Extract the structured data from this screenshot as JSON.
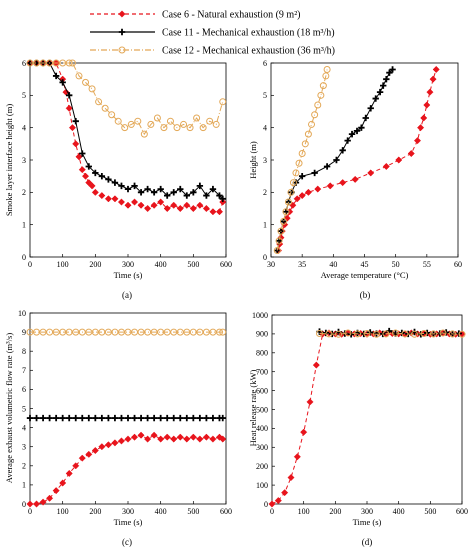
{
  "legend": {
    "items": [
      {
        "label": "Case 6 - Natural exhaustion (9 m²)",
        "color": "#e8141c",
        "marker": "diamond",
        "dash": "4,3"
      },
      {
        "label": "Case 11 - Mechanical exhaustion (18 m³/h)",
        "color": "#000000",
        "marker": "plus",
        "dash": ""
      },
      {
        "label": "Case 12 - Mechanical exhaustion (36 m³/h)",
        "color": "#e3a857",
        "marker": "circle",
        "dash": "6,2,1,2"
      }
    ]
  },
  "chart_data": [
    {
      "panel": "(a)",
      "type": "line",
      "xlabel": "Time (s)",
      "ylabel": "Smoke layer interface height (m)",
      "xlim": [
        0,
        600
      ],
      "ylim": [
        0,
        6
      ],
      "xticks": [
        0,
        100,
        200,
        300,
        400,
        500,
        600
      ],
      "yticks": [
        0,
        1,
        2,
        3,
        4,
        5,
        6
      ],
      "series": [
        {
          "name": "Case 6 - Natural exhaustion (9 m²)",
          "color": "#e8141c",
          "marker": "diamond",
          "x": [
            0,
            20,
            40,
            60,
            80,
            100,
            110,
            120,
            130,
            140,
            150,
            160,
            170,
            180,
            190,
            200,
            220,
            240,
            260,
            280,
            300,
            320,
            340,
            360,
            380,
            400,
            420,
            440,
            460,
            480,
            500,
            520,
            540,
            560,
            580,
            590
          ],
          "y": [
            6,
            6,
            6,
            6,
            6,
            5.5,
            5.1,
            4.6,
            4.0,
            3.5,
            3.1,
            2.7,
            2.5,
            2.3,
            2.2,
            2.0,
            1.9,
            1.8,
            1.8,
            1.7,
            1.6,
            1.7,
            1.6,
            1.5,
            1.6,
            1.7,
            1.5,
            1.6,
            1.5,
            1.6,
            1.5,
            1.6,
            1.5,
            1.4,
            1.4,
            1.7
          ]
        },
        {
          "name": "Case 11 - Mechanical exhaustion (18 m³/h)",
          "color": "#000000",
          "marker": "plus",
          "x": [
            0,
            20,
            40,
            60,
            80,
            100,
            120,
            140,
            160,
            180,
            200,
            220,
            240,
            260,
            280,
            300,
            320,
            340,
            360,
            380,
            400,
            420,
            440,
            460,
            480,
            500,
            520,
            540,
            560,
            580,
            590
          ],
          "y": [
            6,
            6,
            6,
            6,
            5.6,
            5.4,
            5.0,
            4.2,
            3.2,
            2.8,
            2.6,
            2.5,
            2.4,
            2.3,
            2.2,
            2.1,
            2.2,
            2.0,
            2.1,
            2.0,
            2.1,
            1.9,
            2.0,
            2.1,
            1.9,
            2.0,
            2.2,
            1.9,
            2.1,
            1.9,
            1.8
          ]
        },
        {
          "name": "Case 12 - Mechanical exhaustion (36 m³/h)",
          "color": "#e3a857",
          "marker": "circle",
          "x": [
            0,
            20,
            40,
            60,
            80,
            100,
            120,
            130,
            150,
            170,
            190,
            210,
            230,
            250,
            270,
            290,
            310,
            330,
            350,
            370,
            390,
            410,
            430,
            450,
            470,
            490,
            510,
            530,
            550,
            570,
            590
          ],
          "y": [
            6,
            6,
            6,
            6,
            6,
            6,
            6,
            6,
            5.6,
            5.4,
            5.2,
            4.8,
            4.6,
            4.4,
            4.2,
            4.0,
            4.1,
            4.2,
            3.8,
            4.1,
            4.3,
            4.0,
            4.2,
            4.0,
            4.1,
            4.0,
            4.3,
            4.0,
            4.2,
            4.1,
            4.8
          ]
        }
      ]
    },
    {
      "panel": "(b)",
      "type": "line",
      "xlabel": "Average temperature (°C)",
      "ylabel": "Height (m)",
      "xlim": [
        30,
        60
      ],
      "ylim": [
        0,
        6
      ],
      "xticks": [
        30,
        35,
        40,
        45,
        50,
        55,
        60
      ],
      "yticks": [
        0,
        1,
        2,
        3,
        4,
        5,
        6
      ],
      "series": [
        {
          "name": "Case 6 - Natural exhaustion (9 m²)",
          "color": "#e8141c",
          "marker": "diamond",
          "x": [
            31.2,
            31.4,
            31.6,
            31.8,
            32.2,
            32.6,
            33.0,
            33.5,
            34.2,
            35.0,
            36.0,
            37.5,
            39.5,
            41.5,
            43.5,
            46.0,
            48.5,
            50.5,
            52.5,
            53.5,
            54.0,
            54.5,
            55.0,
            55.5,
            56.0,
            56.5
          ],
          "y": [
            0.2,
            0.4,
            0.6,
            0.8,
            1.0,
            1.2,
            1.4,
            1.6,
            1.8,
            1.9,
            2.0,
            2.1,
            2.2,
            2.3,
            2.4,
            2.6,
            2.8,
            3.0,
            3.2,
            3.6,
            4.0,
            4.3,
            4.7,
            5.1,
            5.5,
            5.8
          ]
        },
        {
          "name": "Case 11 - Mechanical exhaustion (18 m³/h)",
          "color": "#000000",
          "marker": "plus",
          "x": [
            31.0,
            31.3,
            31.6,
            32.0,
            32.4,
            32.8,
            33.3,
            34.0,
            35.0,
            37.0,
            39.0,
            40.5,
            41.5,
            42.3,
            43.0,
            43.8,
            44.5,
            45.2,
            46.0,
            46.8,
            47.5,
            48.0,
            48.5,
            49.0,
            49.5
          ],
          "y": [
            0.2,
            0.5,
            0.8,
            1.1,
            1.4,
            1.7,
            2.0,
            2.3,
            2.5,
            2.6,
            2.8,
            3.0,
            3.3,
            3.6,
            3.8,
            3.9,
            4.0,
            4.3,
            4.6,
            4.9,
            5.1,
            5.3,
            5.5,
            5.7,
            5.8
          ]
        },
        {
          "name": "Case 12 - Mechanical exhaustion (36 m³/h)",
          "color": "#e3a857",
          "marker": "circle",
          "x": [
            31.0,
            31.3,
            31.6,
            32.0,
            32.4,
            32.8,
            33.2,
            33.6,
            34.0,
            34.5,
            35.0,
            35.5,
            36.0,
            36.5,
            37.0,
            37.5,
            38.0,
            38.4,
            38.8,
            39.0
          ],
          "y": [
            0.2,
            0.5,
            0.8,
            1.1,
            1.4,
            1.7,
            2.0,
            2.3,
            2.6,
            2.9,
            3.2,
            3.5,
            3.8,
            4.1,
            4.4,
            4.7,
            5.0,
            5.3,
            5.6,
            5.8
          ]
        }
      ]
    },
    {
      "panel": "(c)",
      "type": "line",
      "xlabel": "Time (s)",
      "ylabel": "Average exhaust volumetric flow rate (m³/s)",
      "xlim": [
        0,
        600
      ],
      "ylim": [
        0,
        10
      ],
      "xticks": [
        0,
        100,
        200,
        300,
        400,
        500,
        600
      ],
      "yticks": [
        0,
        1,
        2,
        3,
        4,
        5,
        6,
        7,
        8,
        9,
        10
      ],
      "series": [
        {
          "name": "Case 6 - Natural exhaustion (9 m²)",
          "color": "#e8141c",
          "marker": "diamond",
          "x": [
            0,
            20,
            40,
            60,
            80,
            100,
            120,
            140,
            160,
            180,
            200,
            220,
            240,
            260,
            280,
            300,
            320,
            340,
            360,
            380,
            400,
            420,
            440,
            460,
            480,
            500,
            520,
            540,
            560,
            580,
            590
          ],
          "y": [
            0,
            0,
            0.1,
            0.3,
            0.7,
            1.1,
            1.6,
            2.0,
            2.4,
            2.6,
            2.8,
            3.0,
            3.1,
            3.2,
            3.3,
            3.4,
            3.5,
            3.6,
            3.4,
            3.6,
            3.4,
            3.5,
            3.4,
            3.5,
            3.4,
            3.5,
            3.4,
            3.5,
            3.4,
            3.5,
            3.4
          ]
        },
        {
          "name": "Case 11 - Mechanical exhaustion (18 m³/h)",
          "color": "#000000",
          "marker": "plus",
          "x": [
            0,
            20,
            40,
            60,
            80,
            100,
            120,
            140,
            160,
            180,
            200,
            220,
            240,
            260,
            280,
            300,
            320,
            340,
            360,
            380,
            400,
            420,
            440,
            460,
            480,
            500,
            520,
            540,
            560,
            580,
            590
          ],
          "y": [
            4.5,
            4.5,
            4.5,
            4.5,
            4.5,
            4.5,
            4.5,
            4.5,
            4.5,
            4.5,
            4.5,
            4.5,
            4.5,
            4.5,
            4.5,
            4.5,
            4.5,
            4.5,
            4.5,
            4.5,
            4.5,
            4.5,
            4.5,
            4.5,
            4.5,
            4.5,
            4.5,
            4.5,
            4.5,
            4.5,
            4.5
          ]
        },
        {
          "name": "Case 12 - Mechanical exhaustion (36 m³/h)",
          "color": "#e3a857",
          "marker": "circle",
          "x": [
            0,
            20,
            40,
            60,
            80,
            100,
            120,
            140,
            160,
            180,
            200,
            220,
            240,
            260,
            280,
            300,
            320,
            340,
            360,
            380,
            400,
            420,
            440,
            460,
            480,
            500,
            520,
            540,
            560,
            580,
            590
          ],
          "y": [
            9,
            9,
            9,
            9,
            9,
            9,
            9,
            9,
            9,
            9,
            9,
            9,
            9,
            9,
            9,
            9,
            9,
            9,
            9,
            9,
            9,
            9,
            9,
            9,
            9,
            9,
            9,
            9,
            9,
            9,
            9
          ]
        }
      ]
    },
    {
      "panel": "(d)",
      "type": "line",
      "xlabel": "Time (s)",
      "ylabel": "Heat release rate (kW)",
      "xlim": [
        0,
        600
      ],
      "ylim": [
        0,
        1000
      ],
      "xticks": [
        0,
        100,
        200,
        300,
        400,
        500,
        600
      ],
      "yticks": [
        0,
        100,
        200,
        300,
        400,
        500,
        600,
        700,
        800,
        900,
        1000
      ],
      "series": [
        {
          "name": "Case 6 - Natural exhaustion (9 m²)",
          "color": "#e8141c",
          "marker": "diamond",
          "x": [
            0,
            20,
            40,
            60,
            80,
            100,
            120,
            140,
            160,
            180,
            200,
            220,
            240,
            260,
            280,
            300,
            320,
            340,
            360,
            380,
            400,
            420,
            440,
            460,
            480,
            500,
            520,
            540,
            560,
            580,
            600
          ],
          "y": [
            0,
            18,
            60,
            140,
            250,
            380,
            540,
            735,
            900,
            905,
            900,
            898,
            905,
            900,
            902,
            898,
            900,
            905,
            900,
            902,
            900,
            898,
            905,
            900,
            902,
            898,
            900,
            905,
            900,
            898,
            900
          ]
        },
        {
          "name": "Case 11 - Mechanical exhaustion (18 m³/h)",
          "color": "#000000",
          "marker": "plus",
          "x": [
            150,
            170,
            190,
            210,
            230,
            250,
            270,
            290,
            310,
            330,
            350,
            370,
            390,
            410,
            430,
            450,
            470,
            490,
            510,
            530,
            550,
            570,
            590
          ],
          "y": [
            912,
            905,
            900,
            910,
            902,
            898,
            905,
            900,
            908,
            902,
            900,
            915,
            902,
            905,
            900,
            910,
            898,
            905,
            900,
            902,
            908,
            900,
            902
          ]
        },
        {
          "name": "Case 12 - Mechanical exhaustion (36 m³/h)",
          "color": "#e3a857",
          "marker": "circle",
          "x": [
            150,
            180,
            210,
            240,
            270,
            300,
            330,
            360,
            390,
            420,
            450,
            480,
            510,
            540,
            570,
            600
          ],
          "y": [
            902,
            900,
            898,
            905,
            900,
            902,
            898,
            900,
            905,
            900,
            898,
            902,
            900,
            905,
            900,
            898
          ]
        }
      ]
    }
  ]
}
